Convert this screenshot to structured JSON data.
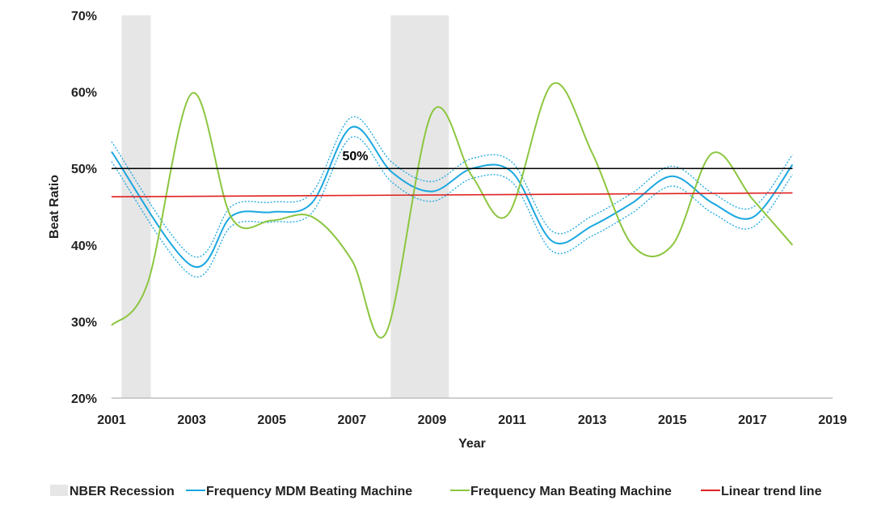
{
  "chart_data": {
    "type": "line",
    "title": "",
    "xlabel": "Year",
    "ylabel": "Beat Ratio",
    "xlim": [
      2001,
      2019
    ],
    "ylim": [
      20,
      70
    ],
    "x_ticks": [
      "2001",
      "2003",
      "2005",
      "2007",
      "2009",
      "2011",
      "2013",
      "2015",
      "2017",
      "2019"
    ],
    "y_ticks": [
      "20%",
      "30%",
      "40%",
      "50%",
      "60%",
      "70%"
    ],
    "recessions": [
      {
        "start": 2001.25,
        "end": 2001.98
      },
      {
        "start": 2007.97,
        "end": 2009.42
      }
    ],
    "reference_line": {
      "value": 50,
      "label": "50%",
      "label_x": 2006.6
    },
    "series": [
      {
        "name": "Frequency MDM Beating Machine",
        "color": "#1aa7e0",
        "x": [
          2001,
          2003,
          2004,
          2005,
          2006,
          2007,
          2008,
          2009,
          2010,
          2011,
          2012,
          2013,
          2014,
          2015,
          2016,
          2017,
          2018
        ],
        "values": [
          52.2,
          37.3,
          43.8,
          44.3,
          45.5,
          55.4,
          49.5,
          47.0,
          50.0,
          49.5,
          40.5,
          42.5,
          45.5,
          49.0,
          45.5,
          43.6,
          50.5
        ],
        "band_width": 1.3
      },
      {
        "name": "Frequency Man Beating Machine",
        "color": "#8cc63f",
        "x": [
          2001,
          2001.9,
          2003,
          2004,
          2005,
          2006,
          2007,
          2007.85,
          2009,
          2010,
          2010.9,
          2012,
          2013,
          2014,
          2015,
          2016,
          2017,
          2018
        ],
        "values": [
          29.5,
          35.0,
          59.8,
          43.5,
          43.2,
          43.7,
          38.0,
          28.5,
          57.3,
          49.0,
          44.0,
          61.0,
          52.0,
          40.0,
          40.0,
          52.0,
          46.0,
          40.0
        ]
      },
      {
        "name": "Linear trend line",
        "color": "#e02020",
        "x": [
          2001,
          2018
        ],
        "values": [
          46.3,
          46.8
        ]
      }
    ],
    "legend": {
      "position": "bottom",
      "entries": [
        {
          "label": "NBER Recession",
          "kind": "box",
          "color": "#e6e6e6"
        },
        {
          "label": "Frequency MDM Beating Machine",
          "kind": "line",
          "color": "#1aa7e0"
        },
        {
          "label": "Frequency Man Beating Machine",
          "kind": "line",
          "color": "#8cc63f"
        },
        {
          "label": "Linear trend line",
          "kind": "line",
          "color": "#e02020"
        }
      ]
    }
  }
}
